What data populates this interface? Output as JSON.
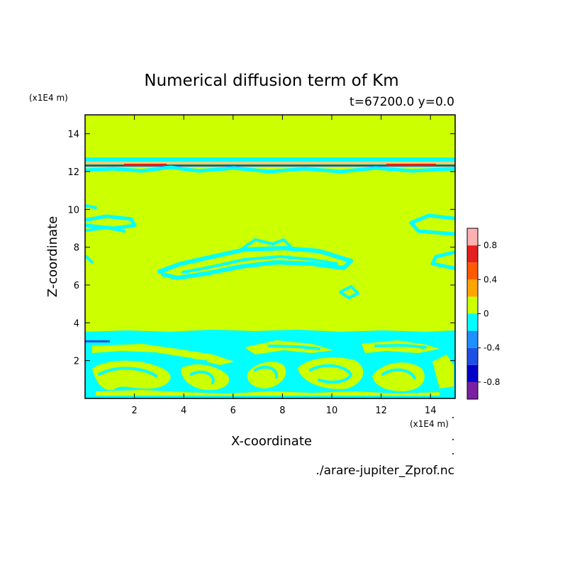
{
  "chart_data": {
    "type": "heatmap",
    "title": "Numerical diffusion term of Km",
    "subtitle": "t=67200.0 y=0.0",
    "xlabel": "X-coordinate",
    "ylabel": "Z-coordinate",
    "x_unit": "(x1E4 m)",
    "y_unit": "(x1E4 m)",
    "xlim": [
      0,
      15
    ],
    "ylim": [
      0,
      15
    ],
    "x_ticks": [
      2,
      4,
      6,
      8,
      10,
      12,
      14
    ],
    "y_ticks": [
      2,
      4,
      6,
      8,
      10,
      12,
      14
    ],
    "grid": false,
    "background_level": 0.0,
    "colorbar": {
      "placement": "right",
      "levels": [
        -1.0,
        -0.8,
        -0.6,
        -0.4,
        -0.2,
        0.0,
        0.2,
        0.4,
        0.6,
        0.8,
        1.0
      ],
      "colors": [
        "#7b1fa2",
        "#0000c8",
        "#1e50e6",
        "#1e90ff",
        "#00ffff",
        "#ccff00",
        "#ffa500",
        "#ff5a00",
        "#e61e1e",
        "#ffb0b0"
      ],
      "tick_labels": [
        "0.8",
        "0.4",
        "0",
        "-0.4",
        "-0.8"
      ],
      "tick_values": [
        0.8,
        0.4,
        0.0,
        -0.4,
        -0.8
      ]
    },
    "source_file": "./arare-jupiter_Zprof.nc"
  }
}
